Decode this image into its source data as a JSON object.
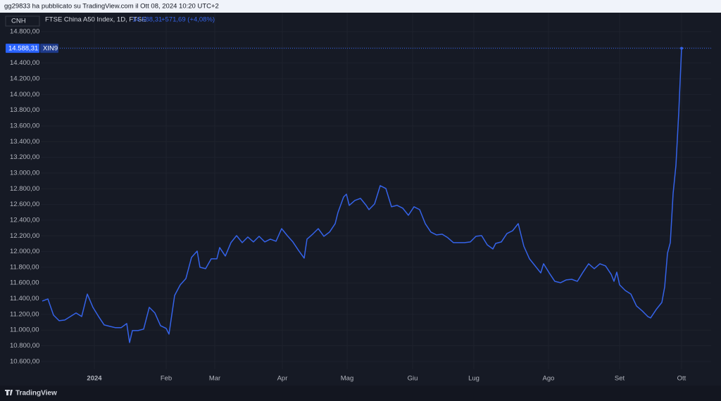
{
  "header": "gg29833 ha pubblicato su TradingView.com il Ott 08, 2024 10:20 UTC+2",
  "footer": "TradingView",
  "chart_data": {
    "type": "line",
    "currency": "CNH",
    "symbol": "XIN9",
    "last_price": {
      "value": 14588.31,
      "label": "14.588,31"
    },
    "change": "+571,69 (+4,08%)",
    "grid": true,
    "xlim": [
      -0.5,
      237.5
    ],
    "ylim": [
      10500,
      15042
    ],
    "xticks": [
      {
        "value": 18.5,
        "label": "2024"
      },
      {
        "value": 44,
        "label": "Feb"
      },
      {
        "value": 61.25,
        "label": "Mar"
      },
      {
        "value": 85.25,
        "label": "Apr"
      },
      {
        "value": 108.25,
        "label": "Mag"
      },
      {
        "value": 131.5,
        "label": "Giu"
      },
      {
        "value": 153.25,
        "label": "Lug"
      },
      {
        "value": 179.75,
        "label": "Ago"
      },
      {
        "value": 205,
        "label": "Set"
      },
      {
        "value": 227,
        "label": "Ott"
      }
    ],
    "yticks": [
      {
        "value": 10600,
        "label": "10.600,00"
      },
      {
        "value": 10800,
        "label": "10.800,00"
      },
      {
        "value": 11000,
        "label": "11.000,00"
      },
      {
        "value": 11200,
        "label": "11.200,00"
      },
      {
        "value": 11400,
        "label": "11.400,00"
      },
      {
        "value": 11600,
        "label": "11.600,00"
      },
      {
        "value": 11800,
        "label": "11.800,00"
      },
      {
        "value": 12000,
        "label": "12.000,00"
      },
      {
        "value": 12200,
        "label": "12.200,00"
      },
      {
        "value": 12400,
        "label": "12.400,00"
      },
      {
        "value": 12600,
        "label": "12.600,00"
      },
      {
        "value": 12800,
        "label": "12.800,00"
      },
      {
        "value": 13000,
        "label": "13.000,00"
      },
      {
        "value": 13200,
        "label": "13.200,00"
      },
      {
        "value": 13400,
        "label": "13.400,00"
      },
      {
        "value": 13600,
        "label": "13.600,00"
      },
      {
        "value": 13800,
        "label": "13.800,00"
      },
      {
        "value": 14000,
        "label": "14.000,00"
      },
      {
        "value": 14200,
        "label": "14.200,00"
      },
      {
        "value": 14400,
        "label": "14.400,00"
      },
      {
        "value": 14600,
        "label": "14.600,00"
      },
      {
        "value": 14800,
        "label": "14.800,00"
      }
    ],
    "series": [
      {
        "name": "FTSE China A50 Index, 1D, FTSE",
        "color": "#3563e9",
        "x": [
          0,
          2,
          4,
          6,
          8,
          10,
          12,
          14,
          16,
          18,
          20,
          22,
          24,
          26,
          28,
          30,
          31,
          32,
          34,
          36,
          38,
          40,
          42,
          44,
          45,
          47,
          49,
          51,
          53,
          55,
          56,
          58,
          60,
          62,
          63,
          65,
          67,
          69,
          71,
          73,
          75,
          77,
          79,
          81,
          83,
          85,
          87,
          89,
          91,
          93,
          94,
          96,
          98,
          100,
          102,
          104,
          105,
          107,
          108,
          109,
          111,
          113,
          115,
          116,
          118,
          120,
          122,
          124,
          126,
          128,
          130,
          132,
          134,
          136,
          138,
          140,
          142,
          144,
          146,
          148,
          150,
          152,
          154,
          156,
          158,
          160,
          161,
          163,
          165,
          167,
          169,
          171,
          173,
          175,
          177,
          178,
          180,
          182,
          184,
          186,
          188,
          190,
          192,
          194,
          196,
          198,
          200,
          202,
          203,
          204,
          205,
          207,
          209,
          211,
          213,
          215,
          216,
          218,
          220,
          221,
          222,
          223,
          224,
          225,
          226,
          227
        ],
        "values": [
          11370,
          11397,
          11191,
          11119,
          11128,
          11173,
          11218,
          11173,
          11459,
          11289,
          11173,
          11065,
          11047,
          11030,
          11030,
          11083,
          10841,
          10994,
          10994,
          11012,
          11289,
          11218,
          11056,
          11021,
          10949,
          11441,
          11576,
          11656,
          11925,
          12006,
          11800,
          11782,
          11907,
          11907,
          12051,
          11943,
          12113,
          12203,
          12113,
          12185,
          12122,
          12194,
          12122,
          12158,
          12131,
          12292,
          12203,
          12122,
          12015,
          11916,
          12158,
          12221,
          12292,
          12194,
          12248,
          12355,
          12498,
          12695,
          12731,
          12588,
          12651,
          12677,
          12588,
          12534,
          12606,
          12839,
          12803,
          12570,
          12588,
          12552,
          12462,
          12570,
          12534,
          12355,
          12248,
          12212,
          12221,
          12176,
          12113,
          12113,
          12113,
          12122,
          12194,
          12203,
          12086,
          12033,
          12104,
          12122,
          12230,
          12265,
          12355,
          12068,
          11907,
          11818,
          11728,
          11845,
          11728,
          11621,
          11603,
          11639,
          11647,
          11621,
          11737,
          11845,
          11782,
          11845,
          11818,
          11710,
          11621,
          11737,
          11576,
          11504,
          11459,
          11307,
          11245,
          11173,
          11155,
          11262,
          11352,
          11549,
          11979,
          12113,
          12740,
          13098,
          13770,
          14588.31
        ]
      }
    ]
  }
}
